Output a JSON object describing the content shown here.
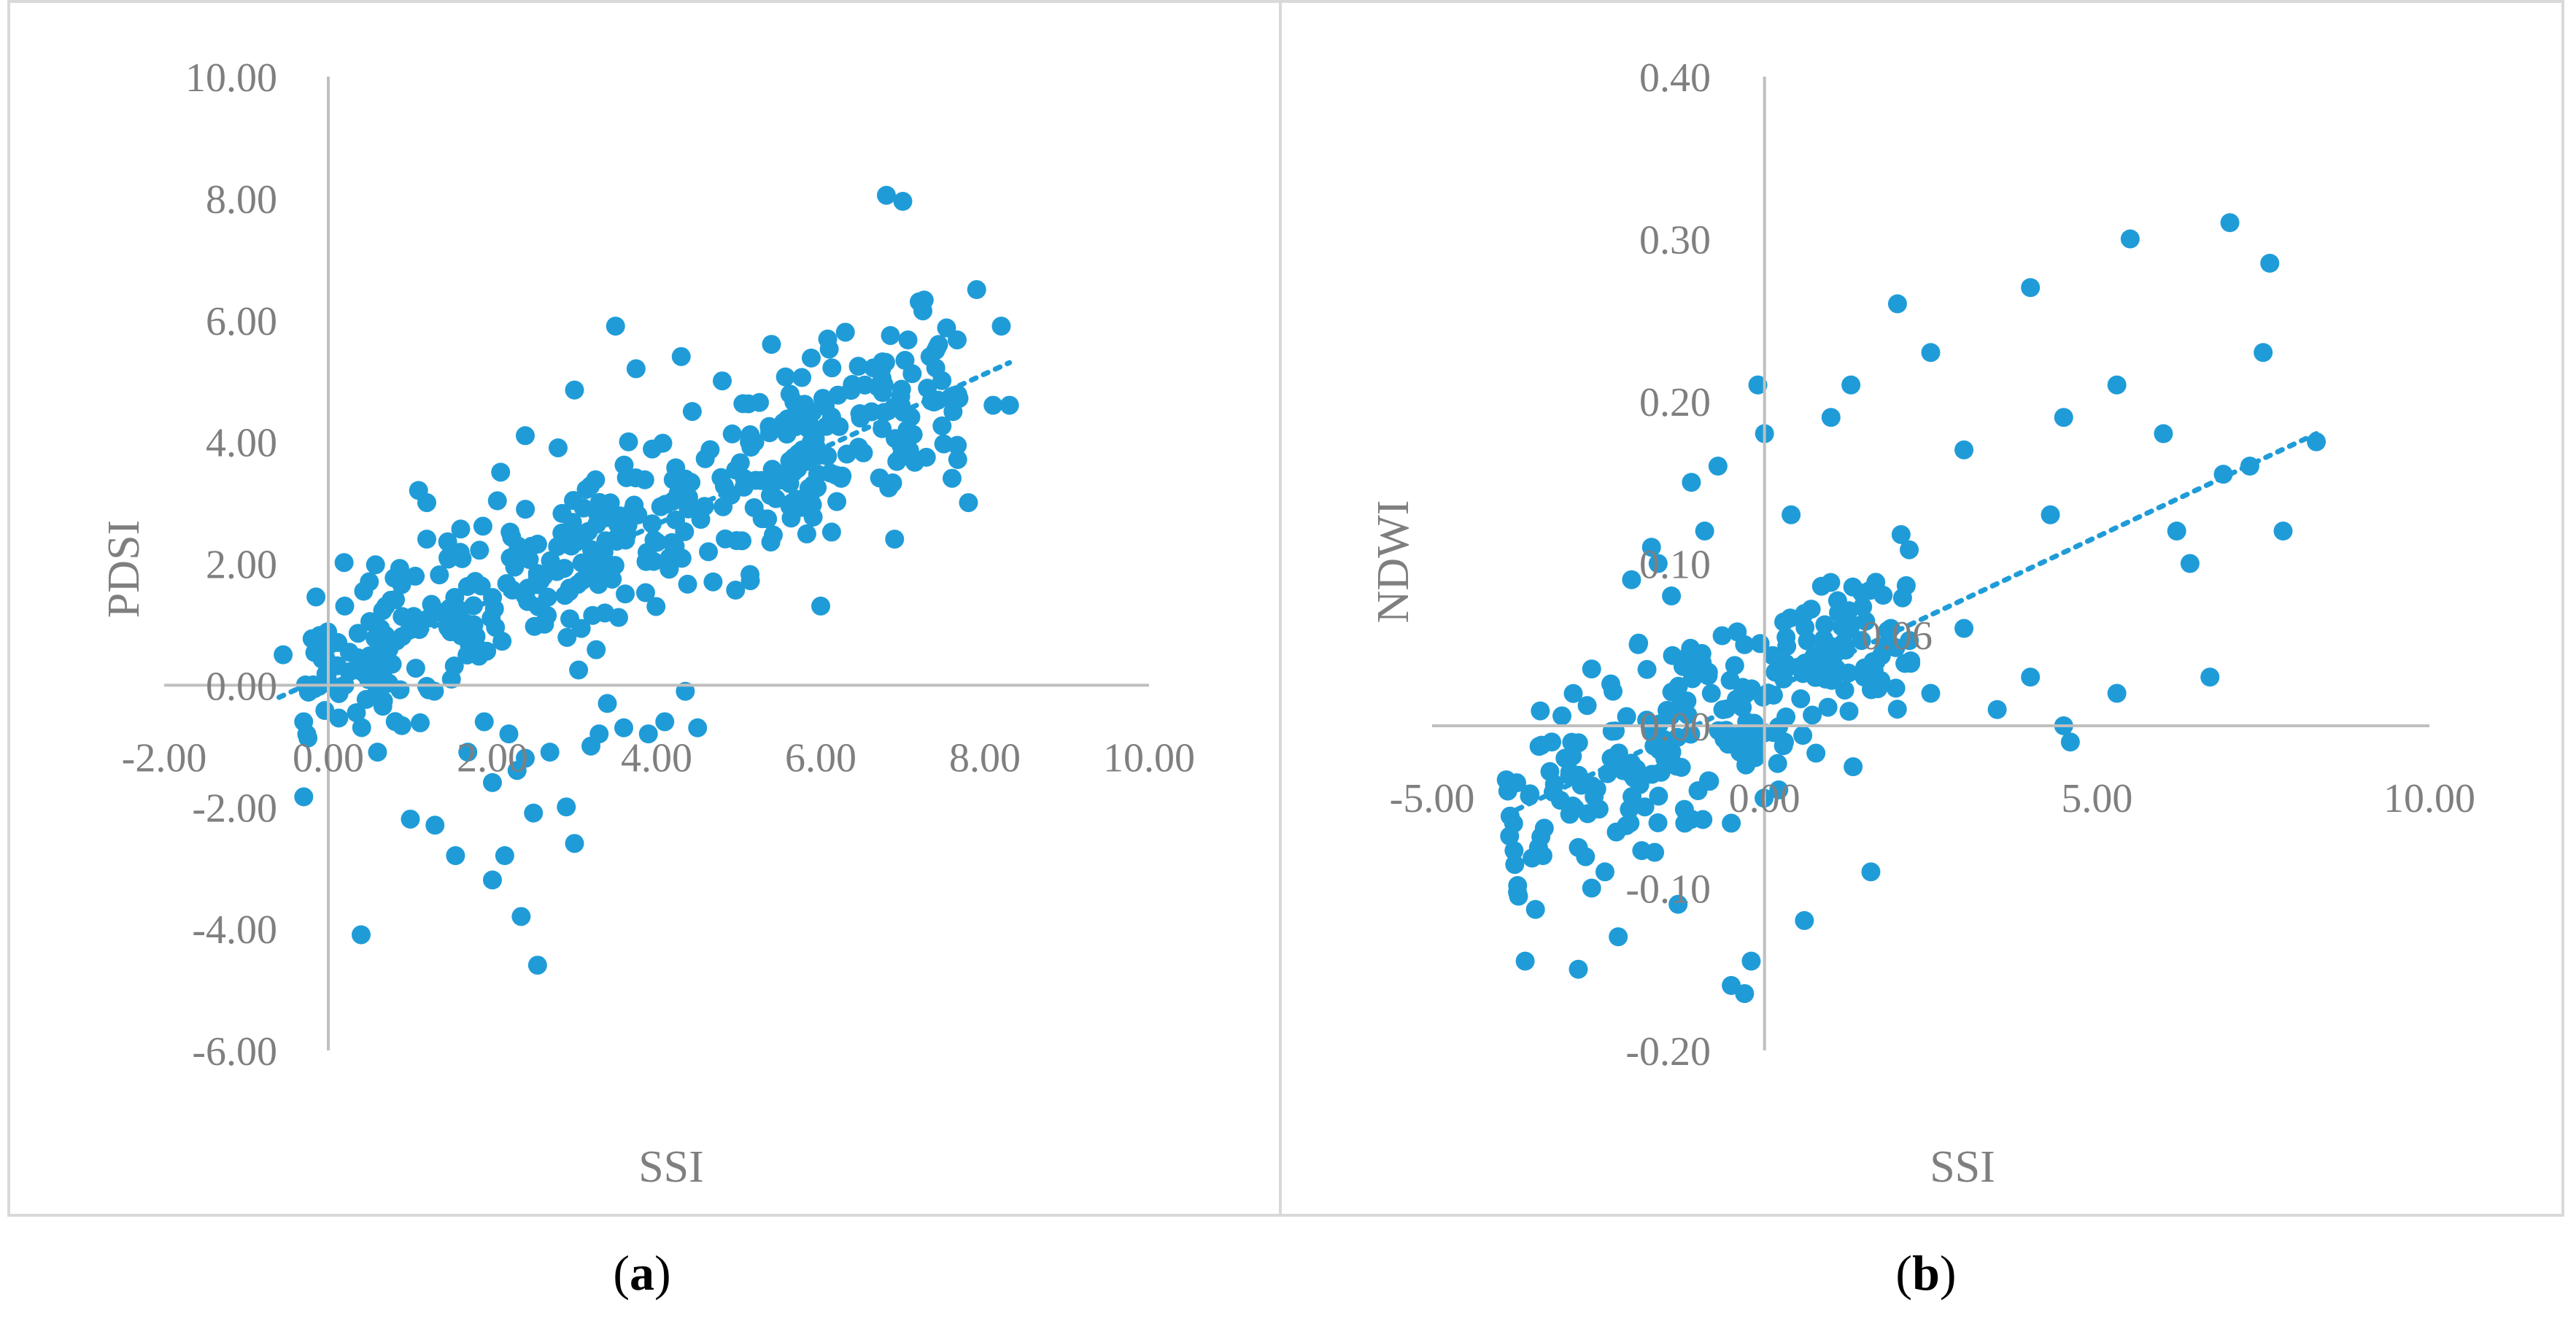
{
  "figure": {
    "panel_a_label": {
      "open": "(",
      "letter": "a",
      "close": ")"
    },
    "panel_b_label": {
      "open": "(",
      "letter": "b",
      "close": ")"
    }
  },
  "colors": {
    "point": "#1f9cd8",
    "axis": "#bfbfbf",
    "text": "#7f7f7f",
    "frame": "#d9d9d9"
  },
  "chart_data": [
    {
      "type": "scatter",
      "panel": "a",
      "xlabel": "SSI",
      "ylabel": "PDSI",
      "xlim": [
        -2,
        10
      ],
      "ylim": [
        -6,
        10
      ],
      "xticks": [
        "-2.00",
        "0.00",
        "2.00",
        "4.00",
        "6.00",
        "8.00",
        "10.00"
      ],
      "yticks": [
        "10.00",
        "8.00",
        "6.00",
        "4.00",
        "2.00",
        "0.00",
        "-2.00",
        "-4.00",
        "-6.00"
      ],
      "trendline": {
        "style": "dotted",
        "x": [
          -0.6,
          8.3
        ],
        "y": [
          -0.2,
          5.3
        ]
      },
      "points": [
        [
          -0.55,
          0.5
        ],
        [
          -0.3,
          -0.6
        ],
        [
          -0.15,
          1.45
        ],
        [
          0.2,
          1.3
        ],
        [
          0.4,
          -4.1
        ],
        [
          0.5,
          1.7
        ],
        [
          0.6,
          -1.1
        ],
        [
          0.7,
          1.3
        ],
        [
          0.9,
          0.8
        ],
        [
          1.0,
          -2.2
        ],
        [
          1.1,
          3.2
        ],
        [
          1.2,
          2.4
        ],
        [
          1.3,
          -2.3
        ],
        [
          1.5,
          0.1
        ],
        [
          1.55,
          -2.8
        ],
        [
          1.7,
          -1.1
        ],
        [
          1.8,
          0.8
        ],
        [
          1.9,
          -0.6
        ],
        [
          2.0,
          -1.6
        ],
        [
          2.0,
          -3.2
        ],
        [
          2.1,
          3.5
        ],
        [
          2.15,
          -2.8
        ],
        [
          2.2,
          -0.8
        ],
        [
          2.3,
          -1.4
        ],
        [
          2.35,
          -3.8
        ],
        [
          2.4,
          -1.2
        ],
        [
          2.5,
          -2.1
        ],
        [
          2.55,
          -4.6
        ],
        [
          2.7,
          -1.1
        ],
        [
          2.8,
          3.9
        ],
        [
          2.9,
          -2.0
        ],
        [
          3.0,
          -2.6
        ],
        [
          3.0,
          4.85
        ],
        [
          3.05,
          0.25
        ],
        [
          3.2,
          -1.0
        ],
        [
          3.3,
          -0.8
        ],
        [
          3.4,
          -0.3
        ],
        [
          3.5,
          5.9
        ],
        [
          3.6,
          -0.7
        ],
        [
          3.75,
          5.2
        ],
        [
          3.9,
          -0.8
        ],
        [
          4.1,
          -0.6
        ],
        [
          4.3,
          5.4
        ],
        [
          4.35,
          -0.1
        ],
        [
          4.5,
          -0.7
        ],
        [
          4.8,
          5.0
        ],
        [
          5.4,
          5.6
        ],
        [
          6.3,
          5.8
        ],
        [
          6.8,
          8.05
        ],
        [
          7.0,
          7.95
        ],
        [
          7.2,
          6.3
        ],
        [
          7.4,
          5.5
        ],
        [
          7.9,
          6.5
        ],
        [
          8.2,
          5.9
        ],
        [
          8.3,
          4.6
        ],
        [
          7.8,
          3.0
        ],
        [
          6.9,
          2.4
        ],
        [
          8.1,
          4.6
        ],
        [
          7.6,
          3.4
        ],
        [
          6.0,
          1.3
        ],
        [
          1.2,
          3.0
        ],
        [
          2.4,
          4.1
        ]
      ]
    },
    {
      "type": "scatter",
      "panel": "b",
      "xlabel": "SSI",
      "ylabel": "NDWI",
      "xlim": [
        -5,
        10
      ],
      "ylim": [
        -0.2,
        0.4
      ],
      "xticks": [
        "-5.00",
        "0.00",
        "5.00",
        "10.00"
      ],
      "yticks": [
        "0.40",
        "0.30",
        "0.20",
        "0.10",
        "0.00",
        "-0.10",
        "-0.20"
      ],
      "trendline": {
        "style": "dotted",
        "x": [
          -3.9,
          8.3
        ],
        "y": [
          -0.055,
          0.18
        ]
      },
      "trend_label": "0.06",
      "points": [
        [
          -3.7,
          -0.105
        ],
        [
          -3.6,
          -0.145
        ],
        [
          -3.4,
          -0.075
        ],
        [
          -3.2,
          -0.01
        ],
        [
          -3.0,
          -0.02
        ],
        [
          -2.8,
          -0.15
        ],
        [
          -2.8,
          -0.075
        ],
        [
          -2.6,
          0.035
        ],
        [
          -2.6,
          -0.1
        ],
        [
          -2.4,
          -0.09
        ],
        [
          -2.2,
          -0.13
        ],
        [
          -2.0,
          0.09
        ],
        [
          -1.9,
          0.05
        ],
        [
          -1.7,
          0.11
        ],
        [
          -1.6,
          0.1
        ],
        [
          -1.4,
          0.08
        ],
        [
          -1.3,
          -0.11
        ],
        [
          -1.1,
          0.15
        ],
        [
          -0.9,
          0.12
        ],
        [
          -0.7,
          0.16
        ],
        [
          -0.5,
          -0.16
        ],
        [
          -0.3,
          -0.165
        ],
        [
          -0.2,
          -0.145
        ],
        [
          -0.1,
          0.21
        ],
        [
          0.0,
          0.18
        ],
        [
          0.4,
          0.13
        ],
        [
          0.6,
          -0.12
        ],
        [
          1.0,
          0.19
        ],
        [
          1.3,
          0.21
        ],
        [
          1.6,
          -0.09
        ],
        [
          2.0,
          0.26
        ],
        [
          2.5,
          0.23
        ],
        [
          3.0,
          0.17
        ],
        [
          4.0,
          0.27
        ],
        [
          5.5,
          0.3
        ],
        [
          7.0,
          0.31
        ],
        [
          7.6,
          0.285
        ],
        [
          7.5,
          0.23
        ],
        [
          6.0,
          0.18
        ],
        [
          6.2,
          0.12
        ],
        [
          6.9,
          0.155
        ],
        [
          7.3,
          0.16
        ],
        [
          7.8,
          0.12
        ],
        [
          8.3,
          0.175
        ],
        [
          5.3,
          0.21
        ],
        [
          5.3,
          0.02
        ],
        [
          6.7,
          0.03
        ],
        [
          6.4,
          0.1
        ],
        [
          4.5,
          0.19
        ],
        [
          4.0,
          0.03
        ],
        [
          4.5,
          0.0
        ],
        [
          4.6,
          -0.01
        ],
        [
          4.3,
          0.13
        ],
        [
          3.5,
          0.01
        ],
        [
          3.0,
          0.06
        ],
        [
          2.5,
          0.02
        ],
        [
          2.2,
          0.04
        ],
        [
          1.9,
          0.06
        ],
        [
          1.5,
          0.03
        ],
        [
          1.0,
          0.04
        ],
        [
          -1.0,
          -0.04
        ],
        [
          -1.5,
          -0.02
        ],
        [
          -0.5,
          -0.06
        ],
        [
          -2.0,
          -0.03
        ],
        [
          -1.2,
          -0.06
        ],
        [
          0.3,
          -0.01
        ],
        [
          -0.8,
          0.02
        ],
        [
          -1.8,
          -0.05
        ],
        [
          0.8,
          0.03
        ],
        [
          -0.3,
          0.05
        ]
      ]
    }
  ],
  "extra_points": {
    "a_cluster_center": [
      4.5,
      2.2
    ],
    "b_cluster_center": [
      -1.2,
      -0.02
    ]
  }
}
